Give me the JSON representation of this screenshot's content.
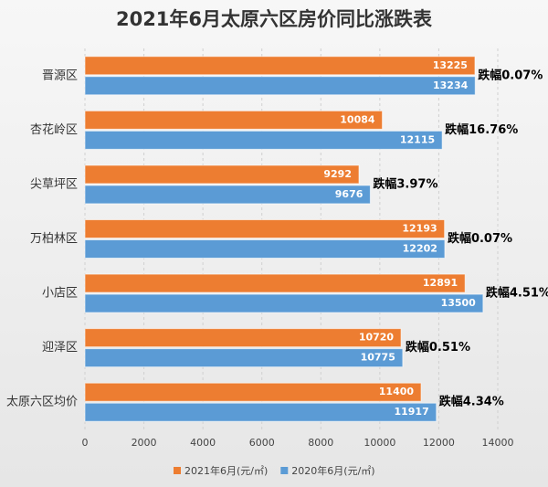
{
  "chart_data": {
    "type": "bar",
    "orientation": "horizontal",
    "title": "2021年6月太原六区房价同比涨跌表",
    "categories": [
      "晋源区",
      "杏花岭区",
      "尖草坪区",
      "万柏林区",
      "小店区",
      "迎泽区",
      "太原六区均价"
    ],
    "series": [
      {
        "name": "2021年6月(元/㎡)",
        "color": "#ed7d31",
        "values": [
          13225,
          10084,
          9292,
          12193,
          12891,
          10720,
          11400
        ]
      },
      {
        "name": "2020年6月(元/㎡)",
        "color": "#5b9bd5",
        "values": [
          13234,
          12115,
          9676,
          12202,
          13500,
          10775,
          11917
        ]
      }
    ],
    "annotations": [
      "跌幅0.07%",
      "跌幅16.76%",
      "跌幅3.97%",
      "跌幅0.07%",
      "跌幅4.51%",
      "跌幅0.51%",
      "跌幅4.34%"
    ],
    "xlim": [
      0,
      14000
    ],
    "xticks": [
      0,
      2000,
      4000,
      6000,
      8000,
      10000,
      12000,
      14000
    ],
    "grid": true,
    "legend": "bottom"
  }
}
